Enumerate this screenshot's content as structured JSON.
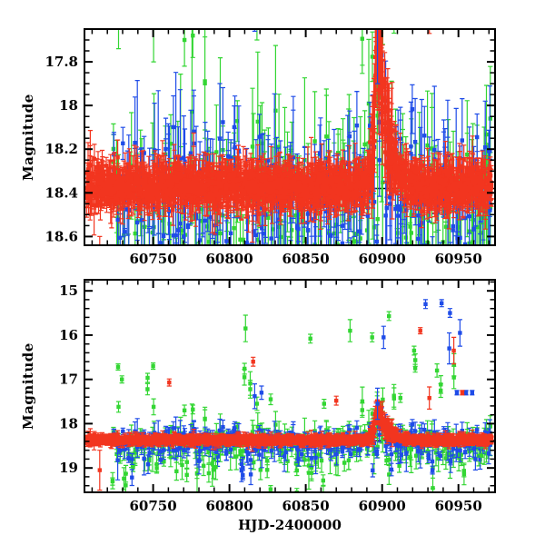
{
  "figure": {
    "background": "#ffffff",
    "frame_color": "#000000",
    "text_color": "#000000"
  },
  "chart_data": {
    "type": "scatter",
    "title": "",
    "xlabel": "HJD-2400000",
    "ylabel": "Magnitude",
    "xlim": [
      60705,
      60974
    ],
    "xticks": [
      60750,
      60800,
      60850,
      60900,
      60950
    ],
    "xtick_labels": [
      "60750",
      "60800",
      "60850",
      "60900",
      "60950"
    ],
    "x_minor_step": 10,
    "grid": false,
    "legend": "none",
    "panels": [
      {
        "id": "zoomed-panel",
        "ylim_top": 17.65,
        "ylim_bottom": 18.64,
        "yticks": [
          17.8,
          18.0,
          18.2,
          18.4,
          18.6
        ],
        "ytick_labels": [
          "17.8",
          "18",
          "18.2",
          "18.4",
          "18.6"
        ],
        "y_minor_step": 0.05,
        "y_axis_inverted": true
      },
      {
        "id": "full-panel",
        "ylim_top": 14.75,
        "ylim_bottom": 19.55,
        "yticks": [
          15,
          16,
          17,
          18,
          19
        ],
        "ytick_labels": [
          "15",
          "16",
          "17",
          "18",
          "19"
        ],
        "y_minor_step": 0.2,
        "y_axis_inverted": true
      }
    ],
    "baseline": {
      "mag": 18.38,
      "color": "#000000"
    },
    "flare": {
      "t_peak": 60896.5,
      "peak_mag": 17.61,
      "amplitude_mag": 0.76,
      "rise_days": 2.2,
      "decay_days": 6.4,
      "err_boost": 2.4,
      "sigma_boost": 2.0
    },
    "seed": 20251107,
    "series": [
      {
        "id": "green",
        "color": "#33d633",
        "n": 320,
        "per_night": 2,
        "t_min": 60722,
        "t_max": 60972,
        "base": 18.5,
        "sigma": 0.2,
        "err_min": 0.08,
        "err_max": 0.3,
        "big_err_frac": 0.2,
        "big_err_mult": 1.8,
        "bright_frac": 0.035,
        "bright_min": 0.8,
        "bright_max": 2.0,
        "faint_frac": 0.18,
        "faint_amp": 0.55,
        "flare_scale": 0.45
      },
      {
        "id": "blue",
        "color": "#1f4ce8",
        "n": 300,
        "per_night": 2,
        "t_min": 60724,
        "t_max": 60972,
        "base": 18.42,
        "sigma": 0.15,
        "err_min": 0.07,
        "err_max": 0.26,
        "big_err_frac": 0.15,
        "big_err_mult": 1.8,
        "bright_frac": 0.02,
        "bright_min": 0.8,
        "bright_max": 1.6,
        "faint_frac": 0.08,
        "faint_amp": 0.4,
        "flare_scale": 0.55
      },
      {
        "id": "red",
        "color": "#f2351f",
        "n": 1500,
        "per_night": 3,
        "t_min": 60706,
        "t_max": 60972,
        "base": 18.37,
        "sigma": 0.042,
        "err_min": 0.035,
        "err_max": 0.09,
        "big_err_frac": 0.08,
        "big_err_mult": 1.8,
        "bright_frac": 0.002,
        "bright_min": 0.4,
        "bright_max": 0.8,
        "faint_frac": 0.0,
        "faint_amp": 0.0,
        "flare_scale": 1.0
      }
    ],
    "outliers": [
      {
        "s": "green",
        "t": 60727.0,
        "mag": 16.72,
        "err": 0.07
      },
      {
        "s": "green",
        "t": 60727.3,
        "mag": 17.62,
        "err": 0.12
      },
      {
        "s": "green",
        "t": 60729.5,
        "mag": 17.0,
        "err": 0.08
      },
      {
        "s": "green",
        "t": 60750.0,
        "mag": 16.7,
        "err": 0.07
      },
      {
        "s": "green",
        "t": 60750.3,
        "mag": 17.62,
        "err": 0.18
      },
      {
        "s": "green",
        "t": 60770.5,
        "mag": 17.7,
        "err": 0.12
      },
      {
        "s": "green",
        "t": 60776.0,
        "mag": 17.68,
        "err": 0.1
      },
      {
        "s": "green",
        "t": 60783.0,
        "mag": 18.95,
        "err": 0.22
      },
      {
        "s": "green",
        "t": 60786.5,
        "mag": 19.12,
        "err": 0.2
      },
      {
        "s": "green",
        "t": 60791.0,
        "mag": 18.98,
        "err": 0.28
      },
      {
        "s": "green",
        "t": 60810.5,
        "mag": 15.85,
        "err": 0.3
      },
      {
        "s": "green",
        "t": 60818.0,
        "mag": 17.55,
        "err": 0.15
      },
      {
        "s": "green",
        "t": 60827.0,
        "mag": 17.45,
        "err": 0.12
      },
      {
        "s": "green",
        "t": 60853.0,
        "mag": 16.08,
        "err": 0.1
      },
      {
        "s": "green",
        "t": 60862.0,
        "mag": 17.55,
        "err": 0.1
      },
      {
        "s": "green",
        "t": 60879.0,
        "mag": 15.9,
        "err": 0.25
      },
      {
        "s": "green",
        "t": 60893.5,
        "mag": 16.05,
        "err": 0.1
      },
      {
        "s": "green",
        "t": 60904.5,
        "mag": 15.57,
        "err": 0.1
      },
      {
        "s": "green",
        "t": 60912.0,
        "mag": 17.42,
        "err": 0.1
      },
      {
        "s": "green",
        "t": 60921.0,
        "mag": 16.35,
        "err": 0.1
      },
      {
        "s": "green",
        "t": 60936.0,
        "mag": 16.8,
        "err": 0.15
      },
      {
        "s": "green",
        "t": 60965.0,
        "mag": 18.72,
        "err": 0.18
      },
      {
        "s": "blue",
        "t": 60816.5,
        "mag": 17.38,
        "err": 0.28
      },
      {
        "s": "blue",
        "t": 60821.0,
        "mag": 17.3,
        "err": 0.15
      },
      {
        "s": "blue",
        "t": 60897.0,
        "mag": 17.55,
        "err": 0.35
      },
      {
        "s": "blue",
        "t": 60901.0,
        "mag": 16.05,
        "err": 0.25
      },
      {
        "s": "blue",
        "t": 60928.5,
        "mag": 15.3,
        "err": 0.1
      },
      {
        "s": "blue",
        "t": 60939.0,
        "mag": 15.28,
        "err": 0.08
      },
      {
        "s": "blue",
        "t": 60944.0,
        "mag": 16.3,
        "err": 0.35
      },
      {
        "s": "blue",
        "t": 60944.5,
        "mag": 15.5,
        "err": 0.1
      },
      {
        "s": "blue",
        "t": 60949.0,
        "mag": 17.3,
        "err": 0.05
      },
      {
        "s": "blue",
        "t": 60951.0,
        "mag": 15.95,
        "err": 0.3
      },
      {
        "s": "blue",
        "t": 60955.0,
        "mag": 17.3,
        "err": 0.05
      },
      {
        "s": "blue",
        "t": 60959.0,
        "mag": 17.3,
        "err": 0.05
      },
      {
        "s": "red",
        "t": 60715.0,
        "mag": 19.05,
        "err": 0.45
      },
      {
        "s": "red",
        "t": 60760.5,
        "mag": 17.07,
        "err": 0.08
      },
      {
        "s": "red",
        "t": 60815.5,
        "mag": 16.6,
        "err": 0.1
      },
      {
        "s": "red",
        "t": 60870.0,
        "mag": 17.48,
        "err": 0.1
      },
      {
        "s": "red",
        "t": 60925.0,
        "mag": 15.9,
        "err": 0.07
      },
      {
        "s": "red",
        "t": 60931.0,
        "mag": 17.42,
        "err": 0.25
      },
      {
        "s": "red",
        "t": 60947.0,
        "mag": 16.35,
        "err": 0.3
      },
      {
        "s": "red",
        "t": 60952.5,
        "mag": 17.3,
        "err": 0.05
      }
    ]
  }
}
